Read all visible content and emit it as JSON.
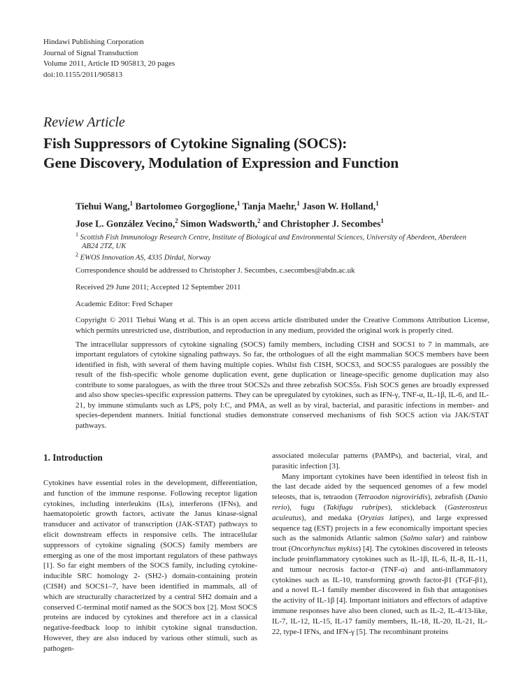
{
  "header": {
    "publisher": "Hindawi Publishing Corporation",
    "journal": "Journal of Signal Transduction",
    "volume_line": "Volume 2011, Article ID 905813, 20 pages",
    "doi": "doi:10.1155/2011/905813"
  },
  "article": {
    "type_label": "Review Article",
    "title_line1": "Fish Suppressors of Cytokine Signaling (SOCS):",
    "title_line2": "Gene Discovery, Modulation of Expression and Function"
  },
  "authors": [
    {
      "name": "Tiehui Wang,",
      "sup": "1"
    },
    {
      "name": " Bartolomeo Gorgoglione,",
      "sup": "1"
    },
    {
      "name": " Tanja Maehr,",
      "sup": "1"
    },
    {
      "name": " Jason W. Holland,",
      "sup": "1"
    },
    {
      "name": "Jose L. González Vecino,",
      "sup": "2"
    },
    {
      "name": " Simon Wadsworth,",
      "sup": "2"
    },
    {
      "name": " and Christopher J. Secombes",
      "sup": "1"
    }
  ],
  "affiliations": [
    {
      "sup": "1",
      "text": " Scottish Fish Immunology Research Centre, Institute of Biological and Environmental Sciences, University of Aberdeen, Aberdeen AB24 2TZ, UK"
    },
    {
      "sup": "2",
      "text": " EWOS Innovation AS, 4335 Dirdal, Norway"
    }
  ],
  "correspondence": {
    "text": "Correspondence should be addressed to Christopher J. Secombes, ",
    "email": "c.secombes@abdn.ac.uk"
  },
  "dates": "Received 29 June 2011; Accepted 12 September 2011",
  "editor": "Academic Editor: Fred Schaper",
  "copyright": "Copyright © 2011 Tiehui Wang et al. This is an open access article distributed under the Creative Commons Attribution License, which permits unrestricted use, distribution, and reproduction in any medium, provided the original work is properly cited.",
  "abstract": "The intracellular suppressors of cytokine signaling (SOCS) family members, including CISH and SOCS1 to 7 in mammals, are important regulators of cytokine signaling pathways. So far, the orthologues of all the eight mammalian SOCS members have been identified in fish, with several of them having multiple copies. Whilst fish CISH, SOCS3, and SOCS5 paralogues are possibly the result of the fish-specific whole genome duplication event, gene duplication or lineage-specific genome duplication may also contribute to some paralogues, as with the three trout SOCS2s and three zebrafish SOCS5s. Fish SOCS genes are broadly expressed and also show species-specific expression patterns. They can be upregulated by cytokines, such as IFN-γ, TNF-α, IL-1β, IL-6, and IL-21, by immune stimulants such as LPS, poly I:C, and PMA, as well as by viral, bacterial, and parasitic infections in member- and species-dependent manners. Initial functional studies demonstrate conserved mechanisms of fish SOCS action via JAK/STAT pathways.",
  "introduction": {
    "heading": "1. Introduction",
    "left_paragraph": "Cytokines have essential roles in the development, differentiation, and function of the immune response. Following receptor ligation cytokines, including interleukins (ILs), interferons (IFNs), and haematopoietic growth factors, activate the Janus kinase-signal transducer and activator of transcription (JAK-STAT) pathways to elicit downstream effects in responsive cells. The intracellular suppressors of cytokine signaling (SOCS) family members are emerging as one of the most important regulators of these pathways [1]. So far eight members of the SOCS family, including cytokine-inducible SRC homology 2- (SH2-) domain-containing protein (CISH) and SOCS1–7, have been identified in mammals, all of which are structurally characterized by a central SH2 domain and a conserved C-terminal motif named as the SOCS box [2]. Most SOCS proteins are induced by cytokines and therefore act in a classical negative-feedback loop to inhibit cytokine signal transduction. However, they are also induced by various other stimuli, such as pathogen-",
    "right_paragraph1": "associated molecular patterns (PAMPs), and bacterial, viral, and parasitic infection [3].",
    "right_paragraph2": [
      {
        "t": "Many important cytokines have been identified in teleost fish in the last decade aided by the sequenced genomes of a few model teleosts, that is, tetraodon ("
      },
      {
        "i": "Tetraodon nigroviridis"
      },
      {
        "t": "), zebrafish ("
      },
      {
        "i": "Danio rerio"
      },
      {
        "t": "), fugu ("
      },
      {
        "i": "Takifugu rubripes"
      },
      {
        "t": "), stickleback ("
      },
      {
        "i": "Gasterosteus aculeatus"
      },
      {
        "t": "), and medaka ("
      },
      {
        "i": "Oryzias latipes"
      },
      {
        "t": "), and large expressed sequence tag (EST) projects in a few economically important species such as the salmonids Atlantic salmon ("
      },
      {
        "i": "Salmo salar"
      },
      {
        "t": ") and rainbow trout ("
      },
      {
        "i": "Oncorhynchus mykiss"
      },
      {
        "t": ") [4]. The cytokines discovered in teleosts include proinflammatory cytokines such as IL-1β, IL-6, IL-8, IL-11, and tumour necrosis factor-α (TNF-α) and anti-inflammatory cytokines such as IL-10, transforming growth factor-β1 (TGF-β1), and a novel IL-1 family member discovered in fish that antagonises the activity of IL-1β [4]. Important initiators and effectors of adaptive immune responses have also been cloned, such as IL-2, IL-4/13-like, IL-7, IL-12, IL-15, IL-17 family members, IL-18, IL-20, IL-21, IL-22, type-I IFNs, and IFN-γ [5]. The recombinant proteins"
      }
    ]
  }
}
